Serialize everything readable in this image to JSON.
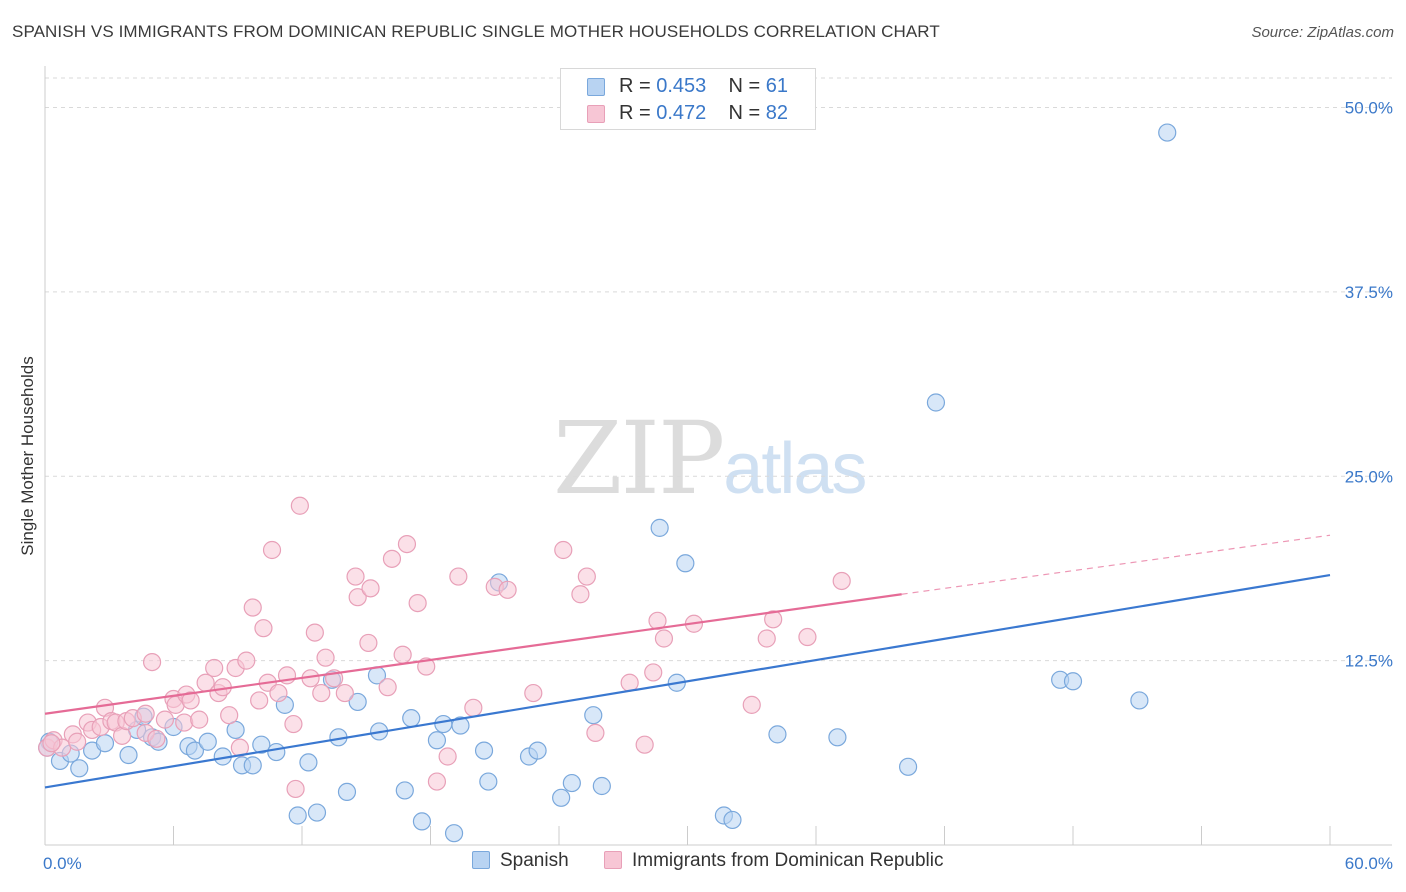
{
  "title": "SPANISH VS IMMIGRANTS FROM DOMINICAN REPUBLIC SINGLE MOTHER HOUSEHOLDS CORRELATION CHART",
  "source": "Source: ZipAtlas.com",
  "watermark": {
    "zip": "ZIP",
    "atlas": "atlas"
  },
  "colors": {
    "spanish_fill": "#b8d3f2",
    "spanish_stroke": "#7aa8dc",
    "spanish_line": "#3a78d0",
    "dominican_fill": "#f7c6d5",
    "dominican_stroke": "#e8a0b8",
    "dominican_line": "#e56b96",
    "grid": "#d9d9d9",
    "tick_label": "#3a78c9"
  },
  "legend": {
    "rows": [
      {
        "r_label": "R =",
        "r_value": "0.453",
        "n_label": "N =",
        "n_value": "61"
      },
      {
        "r_label": "R =",
        "r_value": "0.472",
        "n_label": "N =",
        "n_value": "82"
      }
    ]
  },
  "bottom_legend": {
    "spanish": "Spanish",
    "dominican": "Immigrants from Dominican Republic"
  },
  "chart_data": {
    "type": "scatter",
    "title": "SPANISH VS IMMIGRANTS FROM DOMINICAN REPUBLIC SINGLE MOTHER HOUSEHOLDS CORRELATION CHART",
    "xlabel": "",
    "ylabel": "Single Mother Households",
    "xlim": [
      0,
      60
    ],
    "ylim": [
      0,
      52
    ],
    "x_tick_labels": [
      "0.0%",
      "60.0%"
    ],
    "y_ticks": [
      12.5,
      25.0,
      37.5,
      50.0
    ],
    "y_tick_labels": [
      "12.5%",
      "25.0%",
      "37.5%",
      "50.0%"
    ],
    "grid": true,
    "legend_position": "top-center",
    "series": [
      {
        "name": "Spanish",
        "trend": {
          "x": [
            0,
            60
          ],
          "y": [
            3.9,
            18.3
          ]
        },
        "points": [
          [
            0.2,
            7.0
          ],
          [
            0.7,
            5.7
          ],
          [
            1.2,
            6.2
          ],
          [
            1.6,
            5.2
          ],
          [
            2.2,
            6.4
          ],
          [
            2.8,
            6.9
          ],
          [
            3.9,
            6.1
          ],
          [
            4.3,
            7.8
          ],
          [
            4.6,
            8.7
          ],
          [
            5.0,
            7.3
          ],
          [
            5.3,
            7.0
          ],
          [
            6.0,
            8.0
          ],
          [
            6.7,
            6.7
          ],
          [
            7.0,
            6.4
          ],
          [
            7.6,
            7.0
          ],
          [
            8.3,
            6.0
          ],
          [
            8.9,
            7.8
          ],
          [
            9.2,
            5.4
          ],
          [
            9.7,
            5.4
          ],
          [
            10.1,
            6.8
          ],
          [
            10.8,
            6.3
          ],
          [
            11.2,
            9.5
          ],
          [
            11.8,
            2.0
          ],
          [
            12.3,
            5.6
          ],
          [
            12.7,
            2.2
          ],
          [
            13.4,
            11.2
          ],
          [
            13.7,
            7.3
          ],
          [
            14.1,
            3.6
          ],
          [
            14.6,
            9.7
          ],
          [
            15.5,
            11.5
          ],
          [
            15.6,
            7.7
          ],
          [
            16.8,
            3.7
          ],
          [
            17.1,
            8.6
          ],
          [
            17.6,
            1.6
          ],
          [
            18.3,
            7.1
          ],
          [
            18.6,
            8.2
          ],
          [
            19.1,
            0.8
          ],
          [
            19.4,
            8.1
          ],
          [
            20.5,
            6.4
          ],
          [
            20.7,
            4.3
          ],
          [
            21.2,
            17.8
          ],
          [
            22.6,
            6.0
          ],
          [
            23.0,
            6.4
          ],
          [
            24.1,
            3.2
          ],
          [
            24.6,
            4.2
          ],
          [
            25.6,
            8.8
          ],
          [
            26.0,
            4.0
          ],
          [
            28.7,
            21.5
          ],
          [
            29.5,
            11.0
          ],
          [
            29.9,
            19.1
          ],
          [
            31.7,
            2.0
          ],
          [
            32.1,
            1.7
          ],
          [
            34.2,
            7.5
          ],
          [
            37.0,
            7.3
          ],
          [
            40.3,
            5.3
          ],
          [
            41.6,
            30.0
          ],
          [
            47.4,
            11.2
          ],
          [
            48.0,
            11.1
          ],
          [
            51.1,
            9.8
          ],
          [
            52.4,
            48.3
          ],
          [
            0.1,
            6.6
          ]
        ]
      },
      {
        "name": "Immigrants from Dominican Republic",
        "trend": {
          "x": [
            0,
            40
          ],
          "y": [
            8.9,
            17.0
          ]
        },
        "trend_extension": {
          "x": [
            40,
            60
          ],
          "y": [
            17.0,
            21.0
          ]
        },
        "points": [
          [
            0.1,
            6.6
          ],
          [
            0.4,
            7.1
          ],
          [
            0.8,
            6.6
          ],
          [
            1.3,
            7.5
          ],
          [
            1.5,
            7.0
          ],
          [
            2.0,
            8.3
          ],
          [
            2.2,
            7.8
          ],
          [
            2.6,
            8.0
          ],
          [
            2.8,
            9.3
          ],
          [
            3.1,
            8.4
          ],
          [
            3.3,
            8.3
          ],
          [
            3.6,
            7.4
          ],
          [
            3.8,
            8.4
          ],
          [
            4.1,
            8.6
          ],
          [
            4.7,
            8.9
          ],
          [
            4.7,
            7.6
          ],
          [
            5.0,
            12.4
          ],
          [
            5.2,
            7.2
          ],
          [
            5.6,
            8.5
          ],
          [
            6.0,
            9.9
          ],
          [
            6.1,
            9.5
          ],
          [
            6.5,
            8.3
          ],
          [
            6.6,
            10.2
          ],
          [
            6.8,
            9.8
          ],
          [
            7.2,
            8.5
          ],
          [
            7.5,
            11.0
          ],
          [
            7.9,
            12.0
          ],
          [
            8.1,
            10.3
          ],
          [
            8.3,
            10.7
          ],
          [
            8.6,
            8.8
          ],
          [
            8.9,
            12.0
          ],
          [
            9.1,
            6.6
          ],
          [
            9.4,
            12.5
          ],
          [
            9.7,
            16.1
          ],
          [
            10.0,
            9.8
          ],
          [
            10.2,
            14.7
          ],
          [
            10.4,
            11.0
          ],
          [
            10.6,
            20.0
          ],
          [
            10.9,
            10.3
          ],
          [
            11.3,
            11.5
          ],
          [
            11.6,
            8.2
          ],
          [
            11.7,
            3.8
          ],
          [
            11.9,
            23.0
          ],
          [
            12.4,
            11.3
          ],
          [
            12.6,
            14.4
          ],
          [
            12.9,
            10.3
          ],
          [
            13.1,
            12.7
          ],
          [
            13.5,
            11.3
          ],
          [
            14.0,
            10.3
          ],
          [
            14.5,
            18.2
          ],
          [
            14.6,
            16.8
          ],
          [
            15.1,
            13.7
          ],
          [
            15.2,
            17.4
          ],
          [
            16.0,
            10.7
          ],
          [
            16.2,
            19.4
          ],
          [
            16.7,
            12.9
          ],
          [
            16.9,
            20.4
          ],
          [
            17.4,
            16.4
          ],
          [
            17.8,
            12.1
          ],
          [
            18.3,
            4.3
          ],
          [
            18.8,
            6.0
          ],
          [
            19.3,
            18.2
          ],
          [
            20.0,
            9.3
          ],
          [
            21.0,
            17.5
          ],
          [
            21.6,
            17.3
          ],
          [
            22.8,
            10.3
          ],
          [
            24.2,
            20.0
          ],
          [
            25.0,
            17.0
          ],
          [
            25.3,
            18.2
          ],
          [
            25.7,
            7.6
          ],
          [
            27.3,
            11.0
          ],
          [
            28.0,
            6.8
          ],
          [
            28.4,
            11.7
          ],
          [
            28.6,
            15.2
          ],
          [
            28.9,
            14.0
          ],
          [
            30.3,
            15.0
          ],
          [
            33.0,
            9.5
          ],
          [
            33.7,
            14.0
          ],
          [
            34.0,
            15.3
          ],
          [
            35.6,
            14.1
          ],
          [
            37.2,
            17.9
          ],
          [
            0.3,
            6.9
          ]
        ]
      }
    ]
  }
}
